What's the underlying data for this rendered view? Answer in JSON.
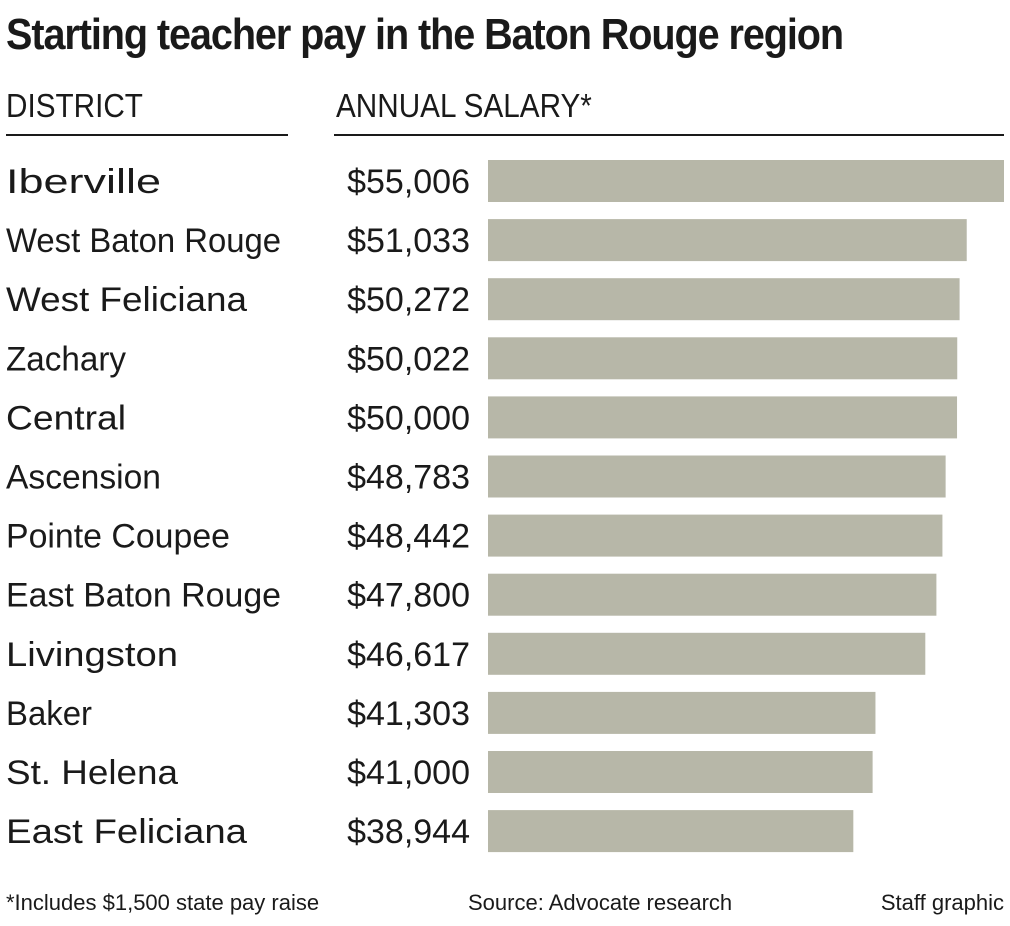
{
  "title": "Starting teacher pay in the Baton Rouge region",
  "headers": {
    "district": "DISTRICT",
    "salary": "ANNUAL SALARY*"
  },
  "footer": {
    "note": "*Includes $1,500 state pay raise",
    "source": "Source: Advocate research",
    "credit": "Staff graphic"
  },
  "colors": {
    "bar": "#b7b7a8",
    "text": "#1a1a1a"
  },
  "chart_data": {
    "type": "bar",
    "orientation": "horizontal",
    "categories": [
      "Iberville",
      "West Baton Rouge",
      "West Feliciana",
      "Zachary",
      "Central",
      "Ascension",
      "Pointe Coupee",
      "East Baton Rouge",
      "Livingston",
      "Baker",
      "St. Helena",
      "East Feliciana"
    ],
    "values": [
      55006,
      51033,
      50272,
      50022,
      50000,
      48783,
      48442,
      47800,
      46617,
      41303,
      41000,
      38944
    ],
    "value_labels": [
      "$55,006",
      "$51,033",
      "$50,272",
      "$50,022",
      "$50,000",
      "$48,783",
      "$48,442",
      "$47,800",
      "$46,617",
      "$41,303",
      "$41,000",
      "$38,944"
    ],
    "title": "Starting teacher pay in the Baton Rouge region",
    "xlabel": "ANNUAL SALARY*",
    "ylabel": "DISTRICT",
    "grid": false,
    "legend": "none"
  }
}
